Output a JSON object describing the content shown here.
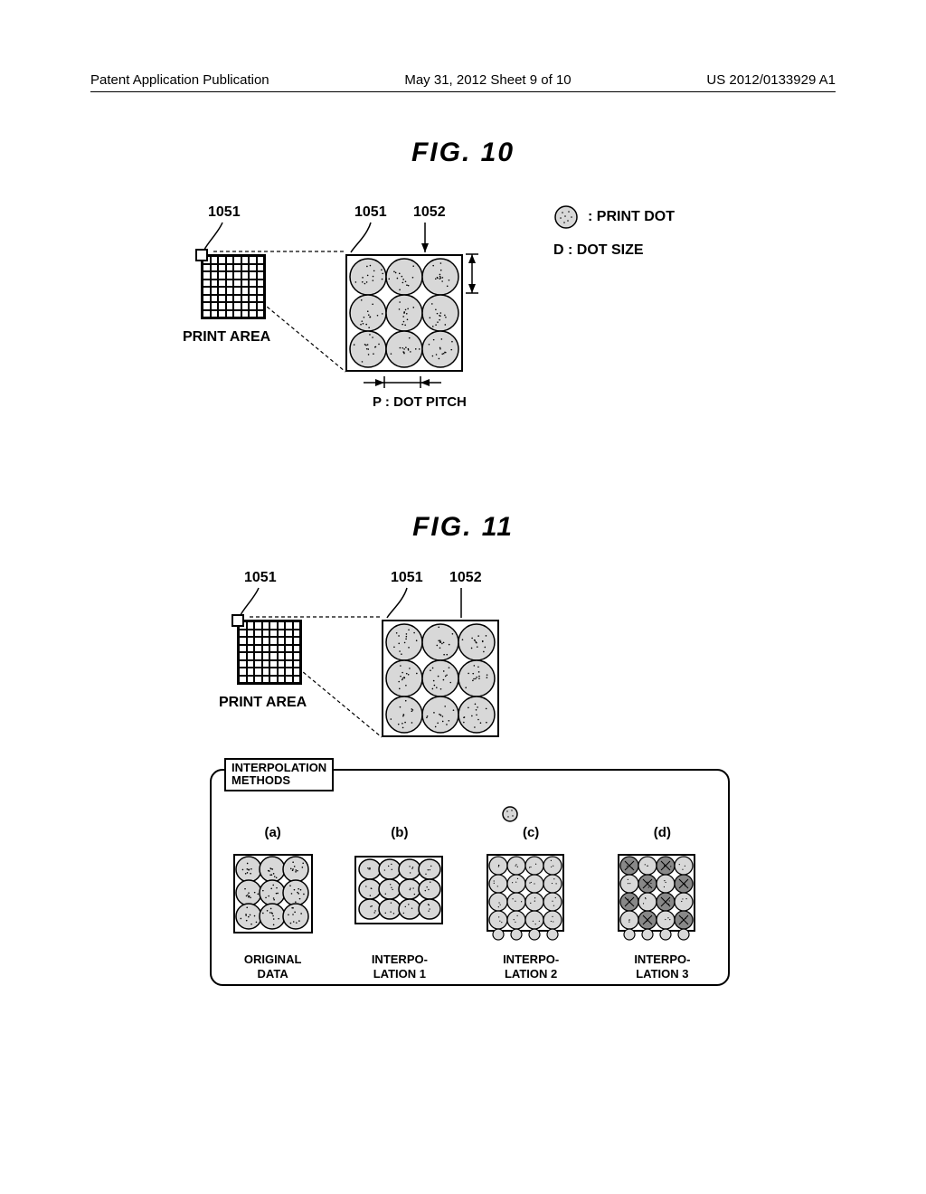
{
  "header": {
    "left": "Patent Application Publication",
    "center": "May 31, 2012  Sheet 9 of 10",
    "right": "US 2012/0133929 A1"
  },
  "fig10": {
    "title": "FIG.  10",
    "refs": {
      "a": "1051",
      "b": "1051",
      "c": "1052"
    },
    "print_area_label": "PRINT AREA",
    "legend": {
      "print_dot": ": PRINT DOT",
      "dot_size": "D : DOT SIZE"
    },
    "dot_pitch": "P : DOT PITCH",
    "dot_grid": {
      "cols": 3,
      "rows": 3,
      "pitch": 40,
      "radius": 20
    },
    "colors": {
      "dot_fill": "#d8d8d8",
      "dot_stroke": "#000000",
      "line": "#000000",
      "bg": "#ffffff"
    }
  },
  "fig11": {
    "title": "FIG.  11",
    "refs": {
      "a": "1051",
      "b": "1051",
      "c": "1052"
    },
    "print_area_label": "PRINT AREA",
    "interp_tab": "INTERPOLATION\nMETHODS",
    "floating_dot": true,
    "items": [
      {
        "letter": "(a)",
        "caption": "ORIGINAL\nDATA",
        "type": "original",
        "cols": 3,
        "rows": 3
      },
      {
        "letter": "(b)",
        "caption": "INTERPO-\nLATION 1",
        "type": "interp1",
        "cols": 4,
        "rows": 3
      },
      {
        "letter": "(c)",
        "caption": "INTERPO-\nLATION 2",
        "type": "interp2",
        "cols": 4,
        "rows": 4,
        "small": true
      },
      {
        "letter": "(d)",
        "caption": "INTERPO-\nLATION 3",
        "type": "interp3",
        "cols": 4,
        "rows": 4,
        "small": true,
        "cross": true
      }
    ],
    "colors": {
      "dot_fill": "#d8d8d8",
      "dot_stroke": "#000000",
      "cross_fill": "#888888"
    }
  }
}
